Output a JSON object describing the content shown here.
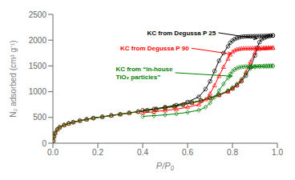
{
  "chart_data": {
    "type": "line",
    "title": "",
    "xlabel": "P/P₀",
    "ylabel": "N₂ adsorbed (cm³ g⁻¹)",
    "xlim": [
      0,
      1.0
    ],
    "ylim": [
      0,
      2500
    ],
    "xticks": [
      {
        "value": 0,
        "label": "0.0"
      },
      0.2,
      0.4,
      0.6,
      0.8,
      {
        "value": 1.0,
        "label": "1.0"
      }
    ],
    "yticks": [
      0,
      500,
      1000,
      1500,
      2000,
      2500
    ],
    "grid": false,
    "annotations": [
      {
        "text": "KC from Degussa P 25",
        "xy": [
          0.91,
          2030
        ],
        "xytext": [
          0.42,
          2100
        ],
        "color": "black"
      },
      {
        "text": "KC from Degussa P 90",
        "xy": [
          0.795,
          1730
        ],
        "xytext": [
          0.3,
          1800
        ],
        "color": "red"
      },
      {
        "text": "KC from “in-house\nTiO₂ particles”",
        "xy": [
          0.8,
          1300
        ],
        "xytext": [
          0.28,
          1250
        ],
        "color": "green"
      }
    ],
    "series": [
      {
        "color": "black",
        "marker": "circle",
        "x": [
          0.002,
          0.005,
          0.01,
          0.02,
          0.03,
          0.05,
          0.07,
          0.09,
          0.12,
          0.15,
          0.18,
          0.22,
          0.26,
          0.3,
          0.34,
          0.38,
          0.42,
          0.46,
          0.5,
          0.54,
          0.58,
          0.62,
          0.66,
          0.7,
          0.74,
          0.78,
          0.8,
          0.82,
          0.84,
          0.86,
          0.88,
          0.9,
          0.91,
          0.92,
          0.93,
          0.94,
          0.95,
          0.96,
          0.97,
          0.98
        ],
        "values": [
          50,
          130,
          200,
          270,
          310,
          355,
          385,
          410,
          440,
          465,
          490,
          515,
          540,
          565,
          590,
          615,
          640,
          665,
          690,
          720,
          750,
          790,
          830,
          880,
          940,
          1010,
          1060,
          1120,
          1200,
          1310,
          1480,
          1700,
          1850,
          1960,
          2020,
          2040,
          2060,
          2075,
          2085,
          2090
        ]
      },
      {
        "color": "black",
        "marker": "circle",
        "x": [
          0.98,
          0.97,
          0.96,
          0.95,
          0.94,
          0.93,
          0.92,
          0.91,
          0.9,
          0.89,
          0.88,
          0.87,
          0.86,
          0.85,
          0.84,
          0.83,
          0.82,
          0.81,
          0.8,
          0.79,
          0.78,
          0.76,
          0.74,
          0.72,
          0.7,
          0.68,
          0.65,
          0.6,
          0.55,
          0.5,
          0.45,
          0.4
        ],
        "values": [
          2090,
          2088,
          2085,
          2083,
          2082,
          2080,
          2079,
          2078,
          2077,
          2076,
          2075,
          2074,
          2073,
          2070,
          2065,
          2055,
          2040,
          2020,
          1990,
          1950,
          1880,
          1750,
          1600,
          1400,
          1200,
          1050,
          900,
          800,
          740,
          700,
          665,
          640
        ]
      },
      {
        "color": "red",
        "marker": "triangle",
        "x": [
          0.002,
          0.005,
          0.01,
          0.02,
          0.03,
          0.05,
          0.07,
          0.09,
          0.12,
          0.15,
          0.18,
          0.22,
          0.26,
          0.3,
          0.34,
          0.38,
          0.42,
          0.46,
          0.5,
          0.54,
          0.58,
          0.62,
          0.66,
          0.7,
          0.74,
          0.78,
          0.8,
          0.82,
          0.84,
          0.86,
          0.88,
          0.9,
          0.92,
          0.94,
          0.95,
          0.96,
          0.97,
          0.98
        ],
        "values": [
          50,
          130,
          195,
          265,
          305,
          350,
          380,
          405,
          435,
          460,
          485,
          510,
          535,
          560,
          585,
          610,
          635,
          660,
          685,
          710,
          745,
          780,
          820,
          870,
          930,
          1000,
          1060,
          1130,
          1220,
          1380,
          1580,
          1760,
          1830,
          1840,
          1845,
          1848,
          1850,
          1852
        ]
      },
      {
        "color": "red",
        "marker": "triangle",
        "x": [
          0.98,
          0.97,
          0.96,
          0.95,
          0.94,
          0.93,
          0.92,
          0.91,
          0.9,
          0.89,
          0.88,
          0.87,
          0.86,
          0.85,
          0.84,
          0.83,
          0.82,
          0.81,
          0.8,
          0.79,
          0.78,
          0.76,
          0.74,
          0.72,
          0.7,
          0.68,
          0.65,
          0.6,
          0.55,
          0.5,
          0.45,
          0.4
        ],
        "values": [
          1852,
          1851,
          1850,
          1849,
          1848,
          1847,
          1846,
          1845,
          1844,
          1843,
          1842,
          1841,
          1840,
          1838,
          1835,
          1830,
          1820,
          1800,
          1770,
          1720,
          1640,
          1480,
          1300,
          1120,
          960,
          850,
          750,
          700,
          660,
          635,
          610,
          590
        ]
      },
      {
        "color": "green",
        "marker": "diamond",
        "x": [
          0.002,
          0.005,
          0.01,
          0.02,
          0.03,
          0.05,
          0.07,
          0.09,
          0.12,
          0.15,
          0.18,
          0.22,
          0.26,
          0.3,
          0.34,
          0.38,
          0.42,
          0.46,
          0.5,
          0.54,
          0.58,
          0.62,
          0.66,
          0.7,
          0.74,
          0.78,
          0.8,
          0.82,
          0.84,
          0.86,
          0.88,
          0.9,
          0.92,
          0.94,
          0.95,
          0.96,
          0.97,
          0.98
        ],
        "values": [
          50,
          130,
          195,
          265,
          305,
          350,
          380,
          405,
          435,
          460,
          485,
          510,
          535,
          560,
          585,
          610,
          635,
          660,
          685,
          715,
          750,
          790,
          830,
          880,
          940,
          1020,
          1080,
          1150,
          1240,
          1350,
          1450,
          1480,
          1490,
          1495,
          1497,
          1498,
          1499,
          1500
        ]
      },
      {
        "color": "green",
        "marker": "diamond",
        "x": [
          0.98,
          0.97,
          0.96,
          0.95,
          0.94,
          0.93,
          0.92,
          0.91,
          0.9,
          0.89,
          0.88,
          0.87,
          0.86,
          0.85,
          0.84,
          0.83,
          0.82,
          0.81,
          0.8,
          0.79,
          0.78,
          0.76,
          0.74,
          0.72,
          0.7,
          0.68,
          0.65,
          0.6,
          0.55,
          0.5,
          0.45,
          0.4
        ],
        "values": [
          1500,
          1499,
          1498,
          1497,
          1496,
          1495,
          1494,
          1493,
          1492,
          1491,
          1490,
          1489,
          1488,
          1485,
          1480,
          1470,
          1455,
          1430,
          1395,
          1340,
          1265,
          1150,
          1020,
          890,
          780,
          700,
          640,
          600,
          570,
          550,
          535,
          520
        ]
      }
    ]
  }
}
